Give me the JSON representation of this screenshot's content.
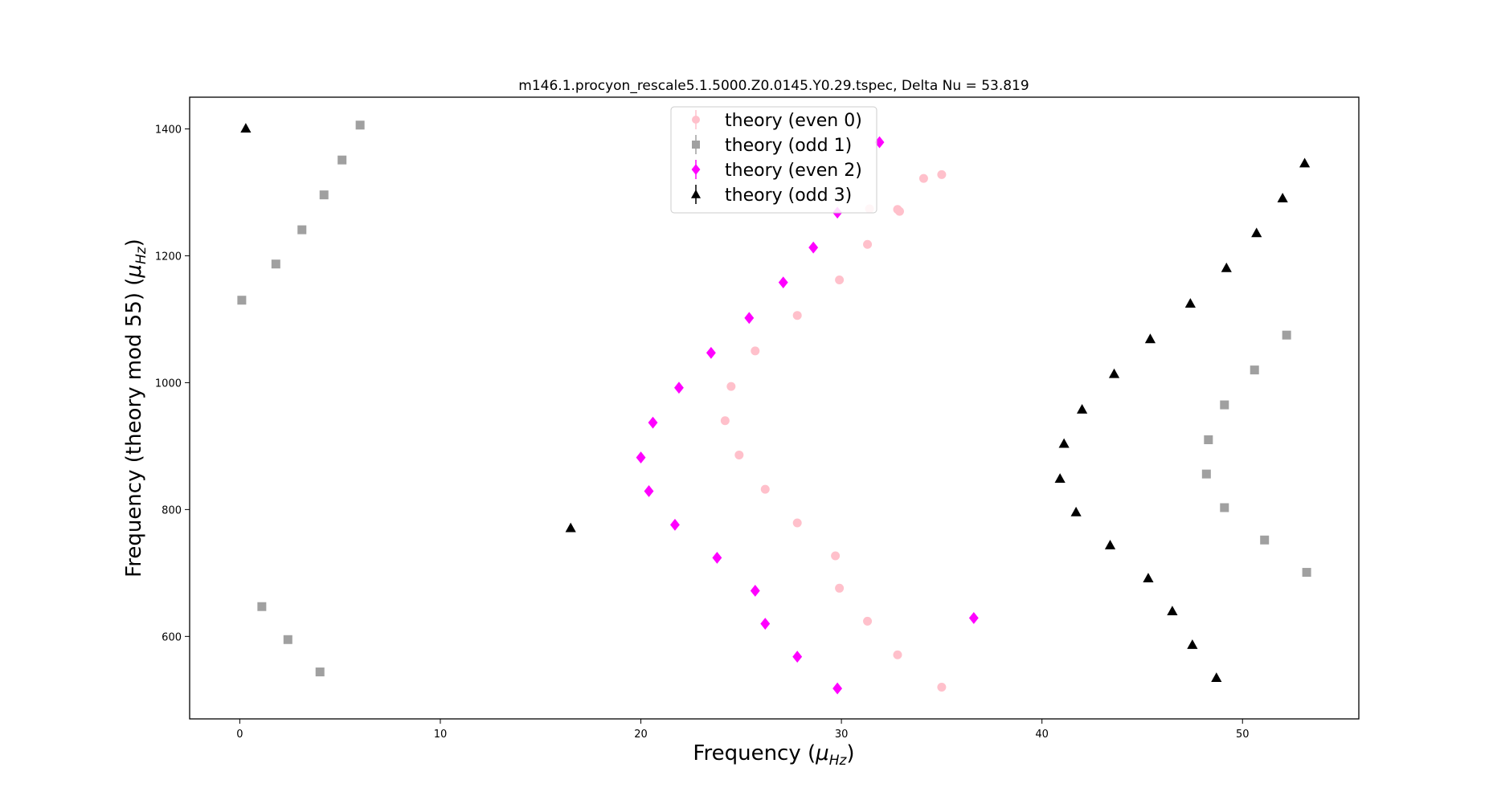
{
  "chart_data": {
    "type": "scatter",
    "title": "m146.1.procyon_rescale5.1.5000.Z0.0145.Y0.29.tspec,    Delta Nu = 53.819",
    "xlabel_main": "Frequency (",
    "xlabel_mu": "μ",
    "xlabel_sub": "Hz",
    "xlabel_close": ")",
    "ylabel_main": "Frequency (theory mod 55) (",
    "ylabel_mu": "μ",
    "ylabel_sub": "Hz",
    "ylabel_close": ")",
    "xlim": [
      -2.5,
      55.8
    ],
    "ylim": [
      470,
      1450
    ],
    "xticks": [
      0,
      10,
      20,
      30,
      40,
      50
    ],
    "yticks": [
      600,
      800,
      1000,
      1200,
      1400
    ],
    "grid": false,
    "legend_position": "top-center",
    "series": [
      {
        "name": "theory (even 0)",
        "marker": "circle",
        "color": "#ffc0cb",
        "x": [
          35.0,
          32.8,
          31.3,
          29.9,
          29.7,
          27.8,
          26.2,
          24.9,
          24.2,
          24.5,
          25.7,
          27.8,
          29.9,
          31.3,
          32.8,
          35.0,
          34.1,
          32.9,
          31.4
        ],
        "y": [
          520,
          571,
          624,
          676,
          727,
          779,
          832,
          886,
          940,
          994,
          1050,
          1106,
          1162,
          1218,
          1273,
          1328,
          1322,
          1270,
          1274
        ]
      },
      {
        "name": "theory (odd 1)",
        "marker": "square",
        "color": "#a0a0a0",
        "x": [
          4.0,
          2.4,
          1.1,
          0.1,
          1.8,
          3.1,
          4.2,
          5.1,
          6.0,
          53.2,
          51.1,
          49.1,
          48.2,
          48.3,
          49.1,
          50.6,
          52.2
        ],
        "y": [
          544,
          595,
          647,
          1130,
          1187,
          1241,
          1296,
          1351,
          1406,
          701,
          752,
          803,
          856,
          910,
          965,
          1020,
          1075
        ]
      },
      {
        "name": "theory (even 2)",
        "marker": "diamond",
        "color": "#ff00ff",
        "x": [
          29.8,
          27.8,
          26.2,
          25.7,
          23.8,
          21.7,
          20.4,
          20.0,
          20.6,
          21.9,
          23.5,
          25.4,
          27.1,
          28.6,
          29.8,
          31.9,
          36.6
        ],
        "y": [
          518,
          568,
          620,
          672,
          724,
          776,
          829,
          882,
          937,
          992,
          1047,
          1102,
          1158,
          1213,
          1268,
          1379,
          629
        ]
      },
      {
        "name": "theory (odd 3)",
        "marker": "triangle",
        "color": "#000000",
        "x": [
          0.3,
          16.5,
          48.7,
          47.5,
          46.5,
          45.3,
          43.4,
          41.7,
          40.9,
          41.1,
          42.0,
          43.6,
          45.4,
          47.4,
          49.2,
          50.7,
          52.0,
          53.1
        ],
        "y": [
          1401,
          771,
          535,
          587,
          640,
          692,
          744,
          796,
          849,
          904,
          958,
          1014,
          1069,
          1125,
          1181,
          1236,
          1291,
          1346
        ]
      }
    ]
  }
}
